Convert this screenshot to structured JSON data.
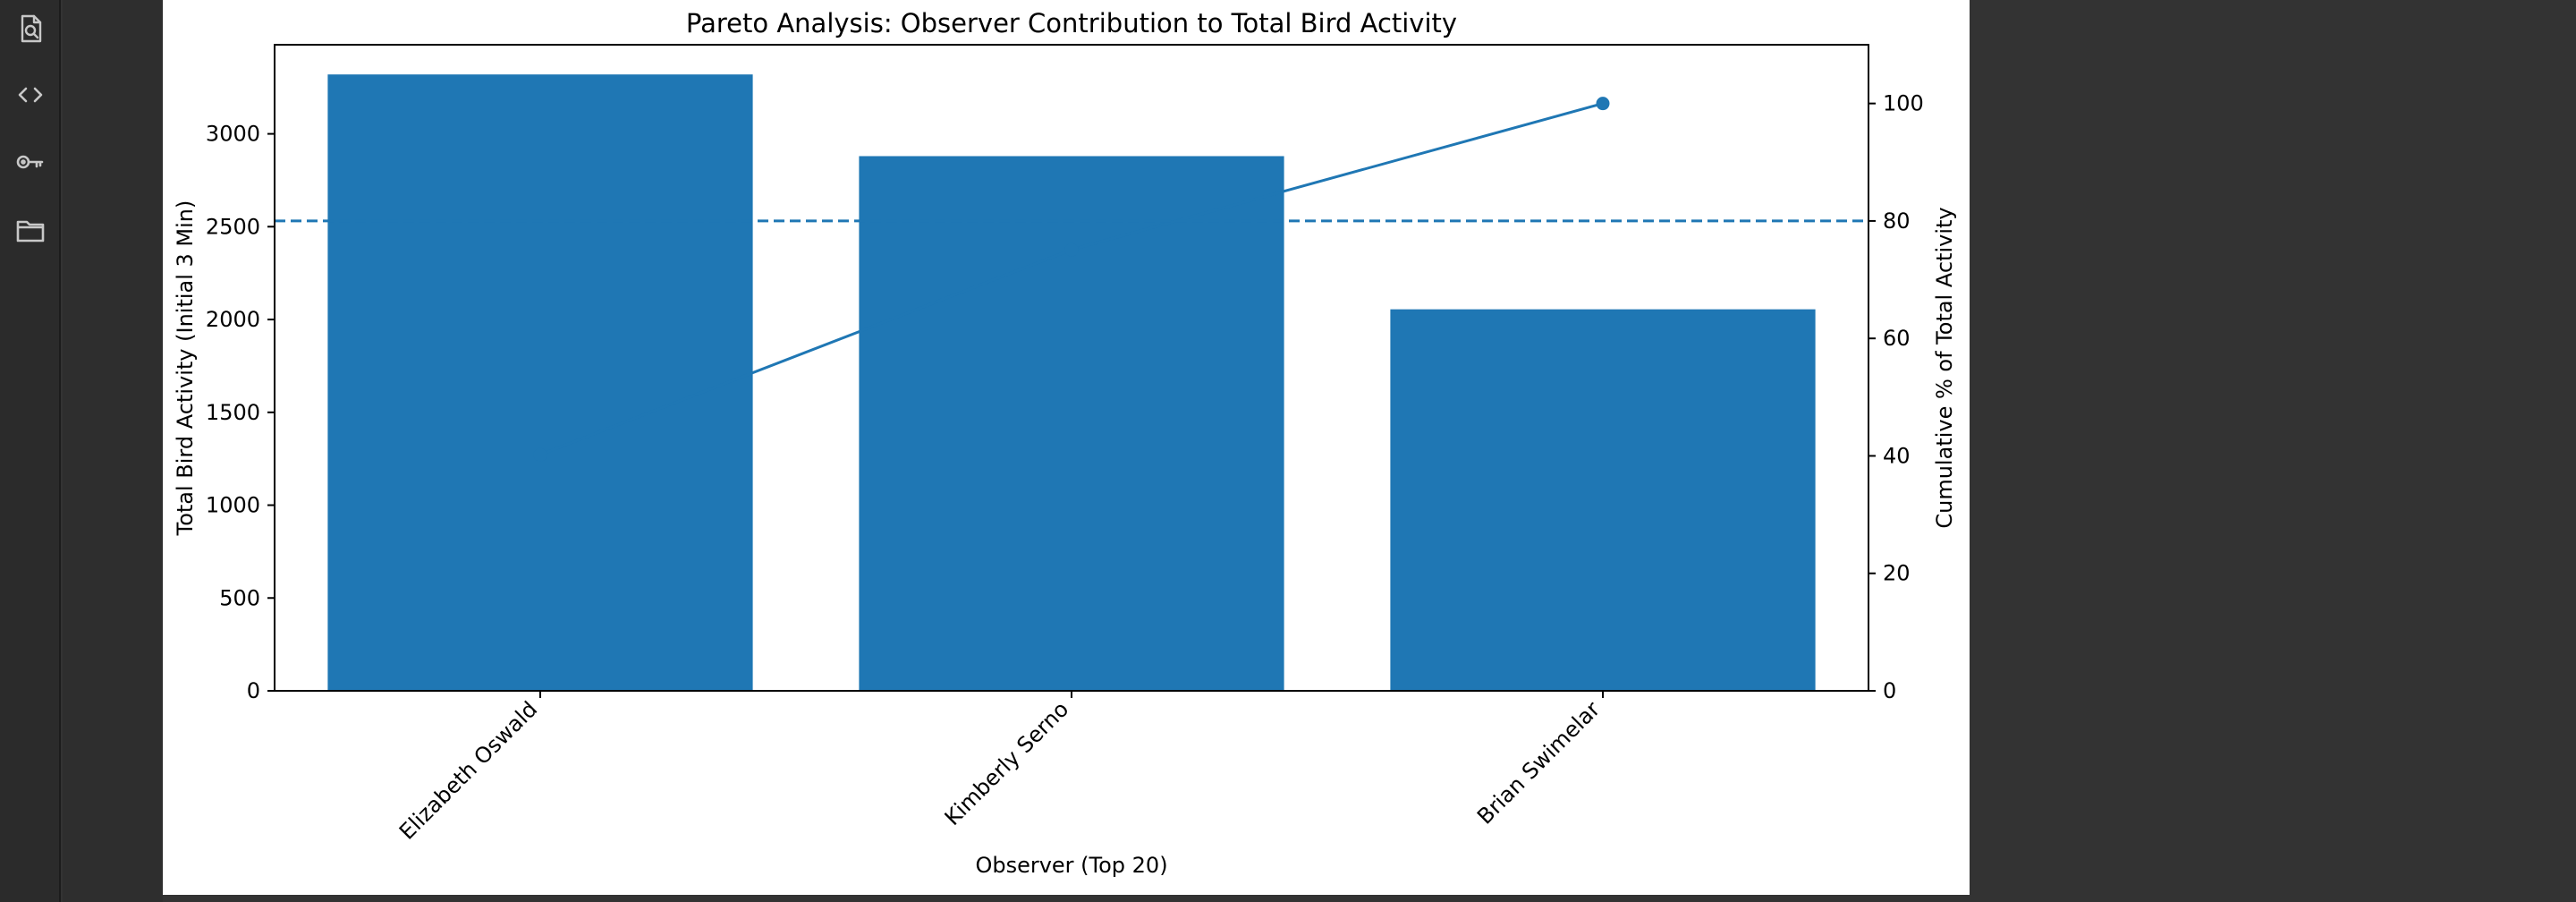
{
  "sidebar": {
    "icons": [
      {
        "name": "search-file-icon"
      },
      {
        "name": "code-icon"
      },
      {
        "name": "key-icon"
      },
      {
        "name": "folder-icon"
      }
    ]
  },
  "chart_data": {
    "type": "bar",
    "title": "Pareto Analysis: Observer Contribution to Total Bird Activity",
    "xlabel": "Observer (Top 20)",
    "ylabel": "Total Bird Activity (Initial 3 Min)",
    "y2label": "Cumulative % of Total Activity",
    "categories": [
      "Elizabeth Oswald",
      "Kimberly Serno",
      "Brian Swimelar"
    ],
    "values": [
      3320,
      2880,
      2055
    ],
    "cumulative_percent": [
      40.2,
      75.1,
      100.0
    ],
    "threshold_percent": 80,
    "ylim": [
      0,
      3480
    ],
    "y2lim": [
      0,
      110
    ],
    "yticks": [
      0,
      500,
      1000,
      1500,
      2000,
      2500,
      3000
    ],
    "y2ticks": [
      0,
      20,
      40,
      60,
      80,
      100
    ],
    "grid": false,
    "colors": {
      "bar": "#1f77b4",
      "line": "#1f77b4"
    }
  }
}
